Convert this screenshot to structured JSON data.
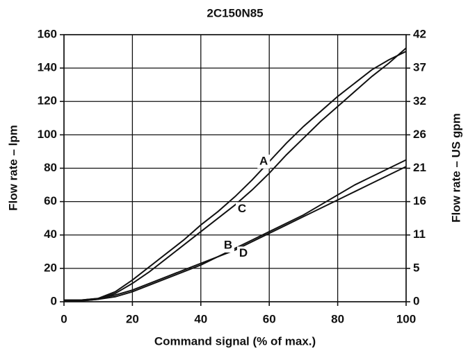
{
  "chart_data": {
    "type": "line",
    "title": "2C150N85",
    "x_label": "Command signal (% of max.)",
    "y_label": "Flow rate – lpm",
    "y2_label": "Flow rate – US gpm",
    "x": [
      0,
      5,
      10,
      15,
      20,
      25,
      30,
      35,
      40,
      45,
      50,
      55,
      60,
      65,
      70,
      75,
      80,
      85,
      90,
      95,
      100
    ],
    "series": [
      {
        "name": "A",
        "color": "#111111",
        "values": [
          1,
          1,
          2,
          6,
          13,
          21,
          29,
          37,
          46,
          54,
          63,
          73,
          84,
          95,
          105,
          114,
          123,
          131,
          139,
          145,
          150
        ]
      },
      {
        "name": "C",
        "color": "#111111",
        "values": [
          0.5,
          0.5,
          1.5,
          5,
          11,
          18,
          26,
          34,
          42,
          50,
          58,
          67,
          77,
          88,
          98,
          108,
          117,
          126,
          135,
          143,
          152
        ]
      },
      {
        "name": "B",
        "color": "#111111",
        "values": [
          1,
          1,
          2,
          4,
          7,
          11,
          15,
          19,
          23,
          27,
          32,
          37,
          42,
          47,
          52,
          58,
          64,
          70,
          75,
          80,
          85
        ]
      },
      {
        "name": "D",
        "color": "#111111",
        "values": [
          0.5,
          0.5,
          1.5,
          3,
          6,
          10,
          14,
          18,
          22,
          27,
          31,
          36,
          41,
          46,
          51,
          56,
          61,
          66,
          71,
          76,
          81
        ]
      }
    ],
    "xlim": [
      0,
      100
    ],
    "xticks": [
      0,
      20,
      40,
      60,
      80,
      100
    ],
    "ylim": [
      0,
      160
    ],
    "yticks": [
      0,
      20,
      40,
      60,
      80,
      100,
      120,
      140,
      160
    ],
    "y2lim": [
      0,
      42.27
    ],
    "y2ticks": [
      0,
      {
        "value": 5.28,
        "label": "5"
      },
      {
        "value": 10.57,
        "label": "11"
      },
      {
        "value": 15.85,
        "label": "16"
      },
      {
        "value": 21.13,
        "label": "21"
      },
      {
        "value": 26.42,
        "label": "26"
      },
      {
        "value": 31.7,
        "label": "32"
      },
      {
        "value": 36.98,
        "label": "37"
      },
      {
        "value": 42.27,
        "label": "42"
      }
    ],
    "grid": true
  }
}
